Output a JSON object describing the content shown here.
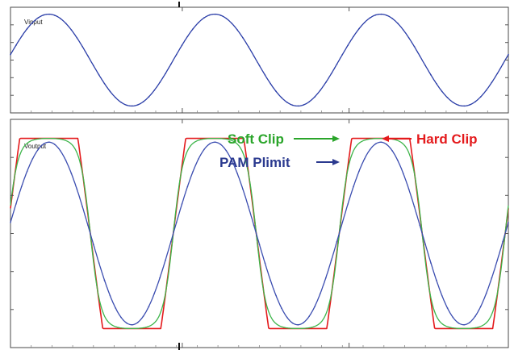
{
  "chart_data": [
    {
      "type": "line",
      "panel_label": "Vinput",
      "x": [
        0,
        180,
        360,
        540,
        720,
        900,
        1080
      ],
      "xlim": [
        0,
        1080
      ],
      "ylim": [
        -1.15,
        1.15
      ],
      "grid": false,
      "series": [
        {
          "color": "#2b3ea8",
          "x": [
            0,
            90,
            180,
            270,
            360,
            450,
            540,
            630,
            720,
            810,
            900,
            990,
            1080
          ],
          "values": [
            0.12,
            1.0,
            0.12,
            -1.0,
            0.12,
            1.0,
            0.12,
            -1.0,
            0.12,
            1.0,
            0.12,
            -1.0,
            0.12
          ]
        }
      ]
    },
    {
      "type": "line",
      "panel_label": "Voutput",
      "xlim": [
        0,
        1080
      ],
      "ylim": [
        -1.2,
        1.2
      ],
      "grid": false,
      "annotations": [
        {
          "text": "Soft Clip",
          "color": "#2aa52a",
          "points_to": "Soft Clip series at peak"
        },
        {
          "text": "Hard Clip",
          "color": "#e41a1c",
          "points_to": "Hard Clip series at peak"
        },
        {
          "text": "PAM Plimit",
          "color": "#2b3a8f",
          "points_to": "PAM Plimit series near peak"
        }
      ],
      "series": [
        {
          "name": "Hard Clip",
          "color": "#e41a1c",
          "rule": "clip(2.2*sin(x), -1, 1)",
          "x": [
            0,
            63,
            90,
            117,
            243,
            270,
            297,
            423,
            450,
            477,
            603,
            630,
            657,
            783,
            810,
            837,
            963,
            990,
            1017,
            1080
          ],
          "values": [
            0.26,
            1.0,
            1.0,
            1.0,
            -1.0,
            -1.0,
            -1.0,
            1.0,
            1.0,
            1.0,
            -1.0,
            -1.0,
            -1.0,
            1.0,
            1.0,
            1.0,
            -1.0,
            -1.0,
            -1.0,
            0.26
          ]
        },
        {
          "name": "Soft Clip",
          "color": "#3db54a",
          "rule": "tanh(2.5*sin(x))/tanh(2.5)",
          "x": [
            0,
            45,
            90,
            135,
            180,
            225,
            270,
            315,
            360,
            405,
            450,
            495,
            540,
            585,
            630,
            675,
            720,
            765,
            810,
            855,
            900,
            945,
            990,
            1035,
            1080
          ],
          "values": [
            0.27,
            0.95,
            0.96,
            0.95,
            0.27,
            -0.95,
            -0.96,
            -0.95,
            0.27,
            0.95,
            0.96,
            0.95,
            0.27,
            -0.95,
            -0.96,
            -0.95,
            0.27,
            0.95,
            0.96,
            0.95,
            0.27,
            -0.95,
            -0.96,
            -0.95,
            0.27
          ]
        },
        {
          "name": "PAM Plimit",
          "color": "#3b4db0",
          "rule": "0.96*sin(x)",
          "x": [
            0,
            90,
            180,
            270,
            360,
            450,
            540,
            630,
            720,
            810,
            900,
            990,
            1080
          ],
          "values": [
            0.12,
            0.96,
            0.12,
            -0.96,
            0.12,
            0.96,
            0.12,
            -0.96,
            0.12,
            0.96,
            0.12,
            -0.96,
            0.12
          ]
        }
      ]
    }
  ]
}
